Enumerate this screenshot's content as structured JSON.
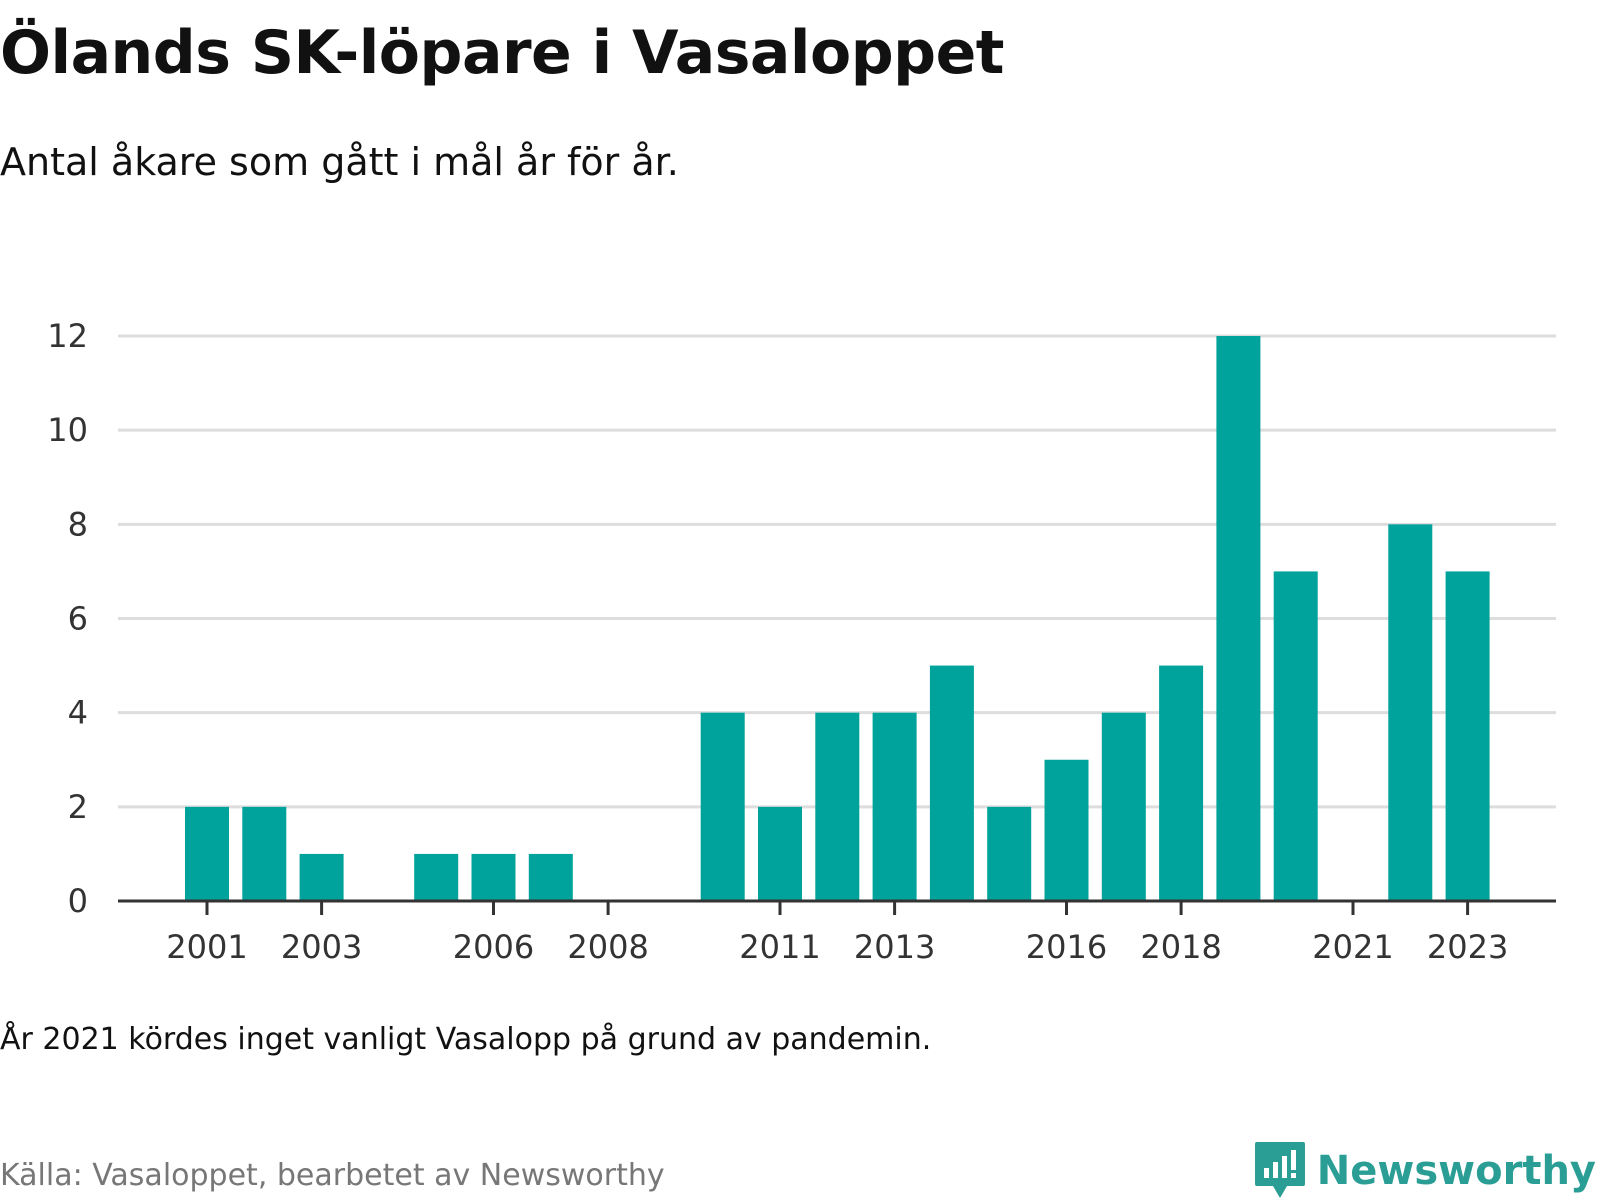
{
  "header": {
    "title": "Ölands SK-löpare i Vasaloppet",
    "subtitle": "Antal åkare som gått i mål år för år."
  },
  "footer": {
    "note": "År 2021 kördes inget vanligt Vasalopp på grund av pandemin.",
    "source": "Källa: Vasaloppet, bearbetet av Newsworthy",
    "brand": "Newsworthy"
  },
  "colors": {
    "bar": "#00a39b",
    "grid": "#dddddd",
    "axis": "#333333",
    "brand": "#2a9d95"
  },
  "chart_data": {
    "type": "bar",
    "title": "Ölands SK-löpare i Vasaloppet",
    "subtitle": "Antal åkare som gått i mål år för år.",
    "xlabel": "",
    "ylabel": "",
    "ylim": [
      0,
      12
    ],
    "yticks": [
      0,
      2,
      4,
      6,
      8,
      10,
      12
    ],
    "xticks": [
      "2001",
      "2003",
      "2006",
      "2008",
      "2011",
      "2013",
      "2016",
      "2018",
      "2021",
      "2023"
    ],
    "grid": true,
    "categories": [
      "2001",
      "2002",
      "2003",
      "2004",
      "2005",
      "2006",
      "2007",
      "2008",
      "2009",
      "2010",
      "2011",
      "2012",
      "2013",
      "2014",
      "2015",
      "2016",
      "2017",
      "2018",
      "2019",
      "2020",
      "2021",
      "2022",
      "2023"
    ],
    "values": [
      2,
      2,
      1,
      0,
      1,
      1,
      1,
      0,
      0,
      4,
      2,
      4,
      4,
      5,
      2,
      3,
      4,
      5,
      12,
      7,
      0,
      8,
      7
    ]
  }
}
